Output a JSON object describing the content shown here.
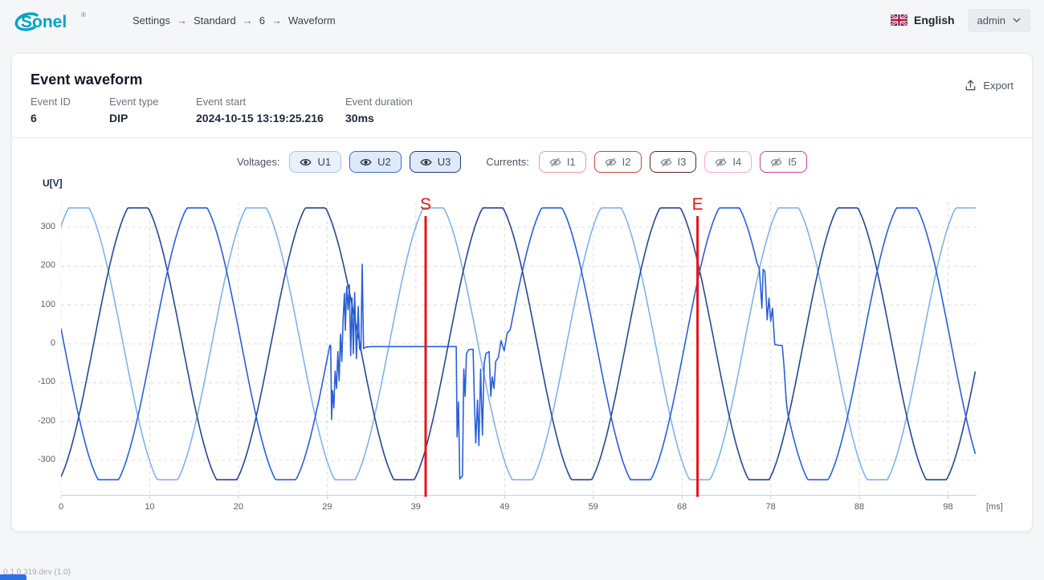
{
  "topbar": {
    "logo_text": "Sonel",
    "logo_reg": "®",
    "logo_color": "#00a2c6",
    "breadcrumb": [
      "Settings",
      "Standard",
      "6",
      "Waveform"
    ],
    "breadcrumb_separator": "→",
    "language": {
      "label": "English",
      "flag_icon": "uk-flag-icon"
    },
    "user_menu": {
      "label": "admin"
    }
  },
  "card": {
    "title": "Event waveform",
    "meta": [
      {
        "label": "Event ID",
        "value": "6"
      },
      {
        "label": "Event type",
        "value": "DIP"
      },
      {
        "label": "Event start",
        "value": "2024-10-15 13:19:25.216"
      },
      {
        "label": "Event duration",
        "value": "30ms"
      }
    ],
    "export_label": "Export"
  },
  "controls": {
    "voltages_label": "Voltages:",
    "voltage_buttons": [
      {
        "label": "U1",
        "border": "#a6c6ee",
        "bg": "#e9f1fc",
        "icon": "eye-icon",
        "visible": true
      },
      {
        "label": "U2",
        "border": "#3a6bd0",
        "bg": "#deeafa",
        "icon": "eye-icon",
        "visible": true
      },
      {
        "label": "U3",
        "border": "#1e3a8a",
        "bg": "#deeafa",
        "icon": "eye-icon",
        "visible": true
      }
    ],
    "currents_label": "Currents:",
    "current_buttons": [
      {
        "label": "I1",
        "border": "#ef9a9a",
        "bg": "#ffffff",
        "icon": "eye-off-icon",
        "visible": false
      },
      {
        "label": "I2",
        "border": "#cf4444",
        "bg": "#ffffff",
        "icon": "eye-off-icon",
        "visible": false
      },
      {
        "label": "I3",
        "border": "#5d2424",
        "bg": "#ffffff",
        "icon": "eye-off-icon",
        "visible": false
      },
      {
        "label": "I4",
        "border": "#f2a9cd",
        "bg": "#ffffff",
        "icon": "eye-off-icon",
        "visible": false
      },
      {
        "label": "I5",
        "border": "#c2409f",
        "bg": "#ffffff",
        "icon": "eye-off-icon",
        "visible": false
      }
    ]
  },
  "chart_data": {
    "type": "line",
    "title": "",
    "ylabel": "U[V]",
    "x_unit": "[ms]",
    "x_tick_labels": [
      "0",
      "10",
      "20",
      "29",
      "39",
      "49",
      "59",
      "68",
      "78",
      "88",
      "98"
    ],
    "y_ticks": [
      300,
      200,
      100,
      0,
      -100,
      -200,
      -300
    ],
    "ylim": [
      -384,
      383
    ],
    "t_range_ms": [
      0,
      103.2
    ],
    "grid": true,
    "legend": "none",
    "waveform_period_ms": 20,
    "gen_amplitude_v": 374,
    "clip_v": 350,
    "grid_color": "#dcdcdc",
    "axis_color": "#c8cdd2",
    "marker_color": "#e51616",
    "markers": [
      {
        "label": "S",
        "t_ms": 41.1
      },
      {
        "label": "E",
        "t_ms": 71.75
      }
    ],
    "series": [
      {
        "name": "U1",
        "color": "#7fb2ea",
        "peak_t_ms": 2,
        "overrides": []
      },
      {
        "name": "U3",
        "color": "#27478f",
        "peak_t_ms": 8.67,
        "overrides": []
      },
      {
        "name": "U2",
        "color": "#2b5fd9",
        "peak_t_ms": 15.33,
        "overrides": [
          {
            "from": 30.35,
            "to": 50.65,
            "points": [
              [
                30.4,
                -5
              ],
              [
                30.5,
                -195
              ],
              [
                30.6,
                -120
              ],
              [
                30.75,
                -165
              ],
              [
                30.9,
                -70
              ],
              [
                31.05,
                -115
              ],
              [
                31.2,
                -20
              ],
              [
                31.35,
                -95
              ],
              [
                31.5,
                25
              ],
              [
                31.65,
                -45
              ],
              [
                31.8,
                65
              ],
              [
                31.95,
                130
              ],
              [
                32.05,
                35
              ],
              [
                32.2,
                148
              ],
              [
                32.35,
                88
              ],
              [
                32.5,
                152
              ],
              [
                32.65,
                -30
              ],
              [
                32.8,
                118
              ],
              [
                32.95,
                -25
              ],
              [
                33.1,
                132
              ],
              [
                33.3,
                -38
              ],
              [
                33.5,
                96
              ],
              [
                33.65,
                -12
              ],
              [
                33.8,
                -18
              ],
              [
                33.95,
                205
              ],
              [
                34.1,
                -12
              ],
              [
                34.4,
                -8
              ],
              [
                35.0,
                -7
              ],
              [
                44.55,
                -7
              ],
              [
                44.65,
                -240
              ],
              [
                44.8,
                -150
              ],
              [
                44.95,
                -348
              ],
              [
                45.25,
                -340
              ],
              [
                45.4,
                -65
              ],
              [
                45.55,
                -135
              ],
              [
                45.7,
                -25
              ],
              [
                45.95,
                -15
              ],
              [
                46.45,
                -14
              ],
              [
                46.6,
                -155
              ],
              [
                46.75,
                -255
              ],
              [
                46.95,
                -145
              ],
              [
                47.1,
                -262
              ],
              [
                47.3,
                -65
              ],
              [
                47.5,
                -235
              ],
              [
                47.7,
                -50
              ],
              [
                47.9,
                -25
              ],
              [
                48.25,
                -20
              ],
              [
                48.45,
                -135
              ],
              [
                48.6,
                -85
              ],
              [
                48.8,
                -115
              ],
              [
                49.0,
                -45
              ],
              [
                49.3,
                -35
              ],
              [
                49.6,
                8
              ],
              [
                49.95,
                -18
              ],
              [
                50.3,
                28
              ],
              [
                50.6,
                35
              ]
            ]
          },
          {
            "from": 78.55,
            "to": 81.85,
            "points": [
              [
                78.7,
                195
              ],
              [
                78.85,
                148
              ],
              [
                79.0,
                92
              ],
              [
                79.15,
                192
              ],
              [
                79.35,
                186
              ],
              [
                79.6,
                62
              ],
              [
                79.8,
                118
              ],
              [
                80.0,
                58
              ],
              [
                80.2,
                92
              ],
              [
                80.45,
                -2
              ],
              [
                81.3,
                -5
              ],
              [
                81.5,
                -58
              ],
              [
                81.75,
                -148
              ]
            ]
          }
        ]
      }
    ]
  },
  "footer": {
    "version": "0.1.0.319.dev (1.0)"
  }
}
